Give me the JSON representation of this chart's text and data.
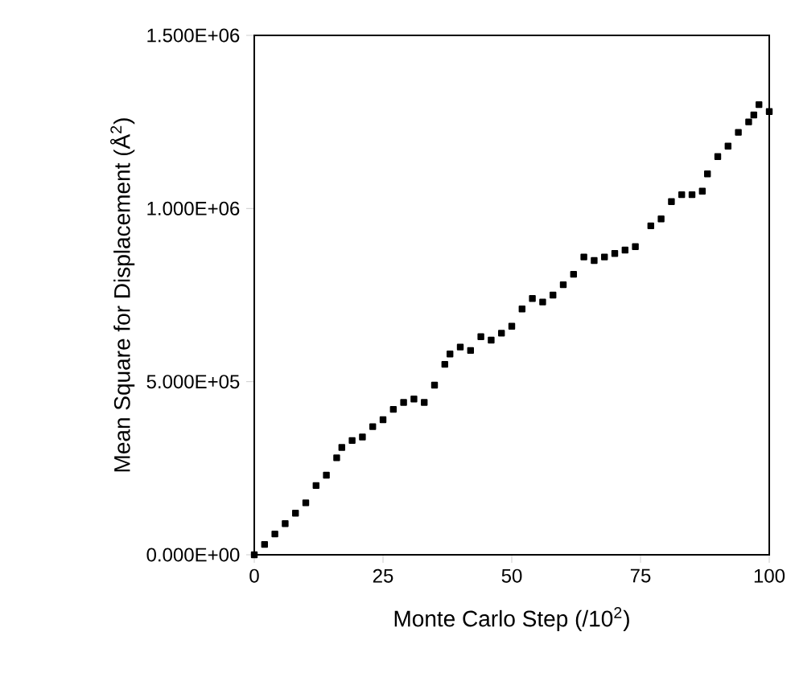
{
  "chart_data": {
    "type": "scatter",
    "xlabel": "Monte Carlo Step (/10$^{2}$)",
    "ylabel": "Mean Square for Displacement (Å$^{2}$)",
    "marker": "square",
    "color": "#000000",
    "x": [
      0,
      2,
      4,
      6,
      8,
      10,
      12,
      14,
      16,
      17,
      19,
      21,
      23,
      25,
      27,
      29,
      31,
      33,
      35,
      37,
      38,
      40,
      42,
      44,
      46,
      48,
      50,
      52,
      54,
      56,
      58,
      60,
      62,
      64,
      66,
      68,
      70,
      72,
      74,
      77,
      79,
      81,
      83,
      85,
      87,
      88,
      90,
      92,
      94,
      96,
      97,
      98,
      100
    ],
    "values": [
      0,
      30000,
      60000,
      90000,
      120000,
      150000,
      200000,
      230000,
      280000,
      310000,
      330000,
      340000,
      370000,
      390000,
      420000,
      440000,
      450000,
      440000,
      490000,
      550000,
      580000,
      600000,
      590000,
      630000,
      620000,
      640000,
      660000,
      710000,
      740000,
      730000,
      750000,
      780000,
      810000,
      860000,
      850000,
      860000,
      870000,
      880000,
      890000,
      950000,
      970000,
      1020000,
      1040000,
      1040000,
      1050000,
      1100000,
      1150000,
      1180000,
      1220000,
      1250000,
      1270000,
      1300000,
      1280000
    ],
    "xlim": [
      0,
      100
    ],
    "xticks": [
      0,
      25,
      50,
      75,
      100
    ],
    "ylim": [
      0,
      1500000
    ],
    "yticks": [
      {
        "value": 0,
        "label": "0.000E+00"
      },
      {
        "value": 500000,
        "label": "5.000E+05"
      },
      {
        "value": 1000000,
        "label": "1.000E+06"
      },
      {
        "value": 1500000,
        "label": "1.500E+06"
      }
    ],
    "grid": false
  }
}
